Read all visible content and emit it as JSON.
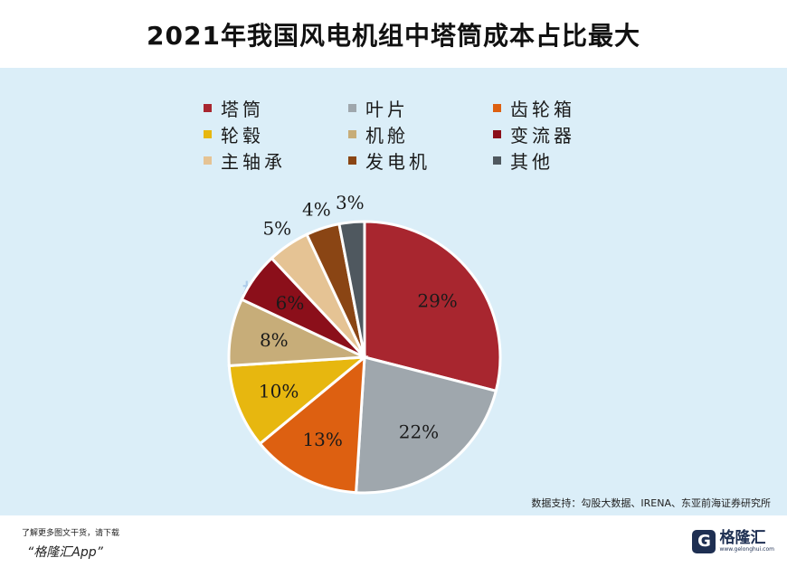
{
  "title": "2021年我国风电机组中塔筒成本占比最大",
  "source": "数据支持：勾股大数据、IRENA、东亚前海证券研究所",
  "footer": {
    "cta_small": "了解更多图文干货，请下载",
    "cta_big": "“格隆汇App”",
    "brand_name": "格隆汇",
    "brand_icon": "G",
    "brand_url": "www.gelonghui.com"
  },
  "watermark": "格隆汇",
  "chart_data": {
    "type": "pie",
    "title": "2021年我国风电机组中塔筒成本占比最大",
    "slices": [
      {
        "label": "塔筒",
        "value": 29,
        "color": "#a8262f",
        "text": "29%"
      },
      {
        "label": "叶片",
        "value": 22,
        "color": "#9fa7ad",
        "text": "22%"
      },
      {
        "label": "齿轮箱",
        "value": 13,
        "color": "#dd6011",
        "text": "13%"
      },
      {
        "label": "轮毂",
        "value": 10,
        "color": "#e7b70f",
        "text": "10%"
      },
      {
        "label": "机舱",
        "value": 8,
        "color": "#c7ad79",
        "text": "8%"
      },
      {
        "label": "变流器",
        "value": 6,
        "color": "#8b0f1a",
        "text": "6%"
      },
      {
        "label": "主轴承",
        "value": 5,
        "color": "#e5c394",
        "text": "5%"
      },
      {
        "label": "发电机",
        "value": 4,
        "color": "#8a4514",
        "text": "4%"
      },
      {
        "label": "其他",
        "value": 3,
        "color": "#4f585f",
        "text": "3%"
      }
    ],
    "legend_placement": "top"
  }
}
